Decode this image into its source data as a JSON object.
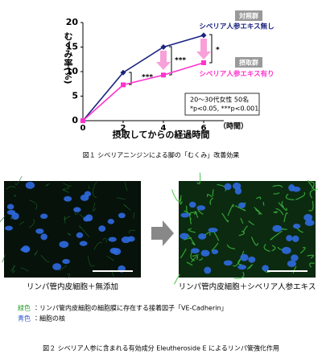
{
  "chart_data": {
    "type": "line",
    "y_label": "むくみ率(%)",
    "x_label": "摂取してからの経過時間",
    "x_unit": "（時間）",
    "x": [
      0,
      2,
      4,
      6
    ],
    "xlim": [
      0,
      7
    ],
    "xticks": [
      0,
      2,
      4,
      6
    ],
    "ylim": [
      0,
      20
    ],
    "yticks": [
      0,
      5,
      10,
      15,
      20
    ],
    "series": [
      {
        "group": "対照群",
        "name": "シベリア人参エキス無し",
        "color": "#1a237e",
        "values": [
          0,
          9.8,
          15,
          17.4
        ]
      },
      {
        "group": "摂取群",
        "name": "シベリア人参エキス有り",
        "color": "#ff33cc",
        "values": [
          0,
          7.3,
          9.3,
          11.8
        ]
      }
    ],
    "annotations": [
      "***",
      "***",
      "*"
    ],
    "note": [
      "20～30代女性 50名",
      "*p<0.05, ***p<0.001"
    ]
  },
  "figure1_caption": "図１ シベリアニンジンによる脚の「むくみ」改善効果",
  "figure2": {
    "images": [
      {
        "label": "リンパ管内皮細胞＋無添加"
      },
      {
        "label": "リンパ管内皮細胞＋シベリア人参エキス"
      }
    ],
    "legend": [
      {
        "color_name": "緑色",
        "text": "：リンパ管内皮細胞の細胞膜に存在する接着因子「VE-Cadherin」"
      },
      {
        "color_name": "青色",
        "text": "：細胞の核"
      }
    ],
    "caption": "図２ シベリア人参に含まれる有効成分 Eleutheroside E によるリンパ管強化作用"
  }
}
